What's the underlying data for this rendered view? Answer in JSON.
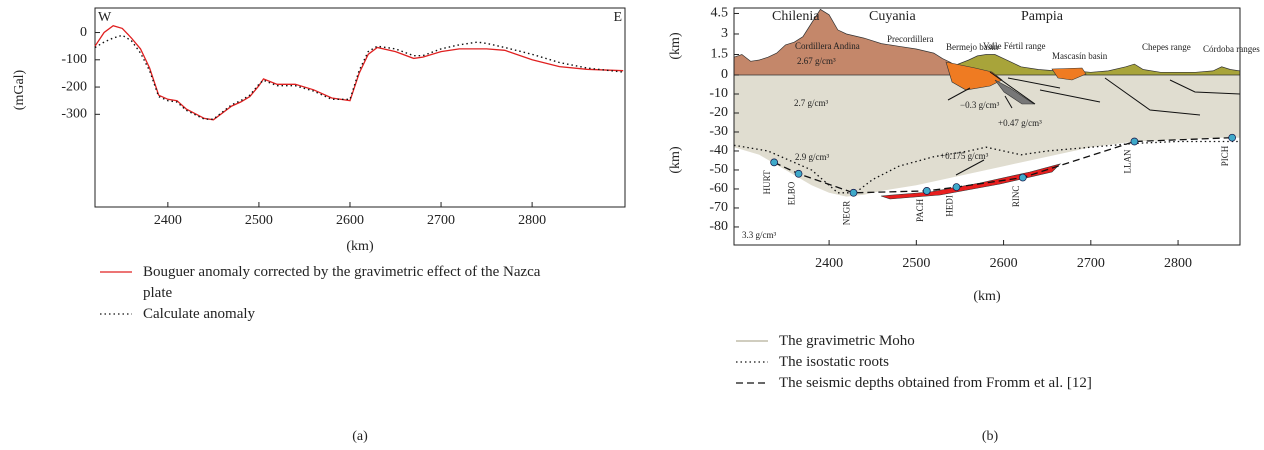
{
  "chart_data": [
    {
      "type": "line",
      "xlabel": "(km)",
      "ylabel": "(mGal)",
      "annotations": [
        "W",
        "E"
      ],
      "xlim": [
        2320,
        2902
      ],
      "xticks": [
        2400,
        2500,
        2600,
        2700,
        2800
      ],
      "ylim": [
        -640,
        90
      ],
      "yticks": [
        0,
        -100,
        -200,
        -300
      ],
      "x": [
        2320,
        2330,
        2340,
        2350,
        2360,
        2370,
        2380,
        2390,
        2400,
        2410,
        2420,
        2440,
        2450,
        2470,
        2480,
        2490,
        2500,
        2505,
        2520,
        2540,
        2560,
        2580,
        2600,
        2610,
        2620,
        2630,
        2650,
        2670,
        2680,
        2700,
        2720,
        2740,
        2750,
        2770,
        2800,
        2830,
        2860,
        2900
      ],
      "series": [
        {
          "name": "Bouguer anomaly corrected by the gravimetric effect of the Nazca plate",
          "color": "#e02020",
          "dash": "solid",
          "values": [
            -50,
            0,
            25,
            15,
            -20,
            -60,
            -130,
            -230,
            -245,
            -250,
            -280,
            -315,
            -320,
            -270,
            -255,
            -235,
            -195,
            -170,
            -190,
            -190,
            -210,
            -240,
            -250,
            -150,
            -80,
            -55,
            -70,
            -95,
            -90,
            -70,
            -60,
            -60,
            -60,
            -65,
            -100,
            -125,
            -135,
            -140
          ]
        },
        {
          "name": "Calculate anomaly",
          "color": "#111",
          "dash": "dotted",
          "values": [
            -55,
            -35,
            -20,
            -10,
            -30,
            -75,
            -140,
            -235,
            -250,
            -255,
            -285,
            -318,
            -318,
            -265,
            -250,
            -230,
            -190,
            -175,
            -195,
            -195,
            -215,
            -245,
            -245,
            -140,
            -70,
            -50,
            -60,
            -85,
            -85,
            -60,
            -45,
            -35,
            -40,
            -55,
            -80,
            -110,
            -130,
            -145
          ]
        }
      ]
    },
    {
      "type": "section",
      "xlabel": "(km)",
      "ylabel": "(km)",
      "y2label": "(km)",
      "xlim": [
        2291,
        2871
      ],
      "xticks": [
        2400,
        2500,
        2600,
        2700,
        2800
      ],
      "ylim": [
        -89.5,
        0
      ],
      "yticks": [
        -10,
        -20,
        -30,
        -40,
        -50,
        -60,
        -70,
        -80
      ],
      "y2lim": [
        0,
        4.9
      ],
      "y2ticks": [
        0,
        1.5,
        3,
        4.5
      ],
      "annotations": [
        "Chilenia",
        "Cuyania",
        "Pampia",
        "Cordillera Andina",
        "2.67 g/cm³",
        "Precordillera",
        "Bermejo basin",
        "Valle Fértil range",
        "Mascasín basin",
        "Chepes range",
        "Córdoba ranges",
        "2.7 g/cm³",
        "−0.3 g/cm³",
        "+0.47 g/cm³",
        "2.9 g/cm³",
        "+0.175 g/cm³",
        "3.3 g/cm³"
      ],
      "topography": [
        {
          "axis": "y2",
          "color": "#c4876a",
          "x": [
            2291,
            2300,
            2310,
            2320,
            2330,
            2340,
            2350,
            2360,
            2370,
            2380,
            2390,
            2400,
            2410,
            2420,
            2440,
            2460,
            2480,
            2500,
            2520,
            2530,
            2540,
            2545
          ],
          "values": [
            1.3,
            1.5,
            1.0,
            1.1,
            1.3,
            1.6,
            2.2,
            2.4,
            2.8,
            3.8,
            4.8,
            4.4,
            3.3,
            3.0,
            2.7,
            2.3,
            2.1,
            1.9,
            1.6,
            1.2,
            0.9,
            0
          ]
        },
        {
          "axis": "y2",
          "color": "#a8a43a",
          "x": [
            2540,
            2560,
            2570,
            2580,
            2590,
            2600,
            2620,
            2640,
            2660,
            2680,
            2700,
            2720,
            2740,
            2750,
            2760,
            2780,
            2800,
            2820,
            2840,
            2850,
            2860,
            2871
          ],
          "values": [
            0.6,
            1.1,
            1.4,
            1.5,
            1.5,
            1.2,
            0.6,
            0.4,
            0.3,
            0.3,
            0.2,
            0.3,
            0.6,
            0.8,
            0.4,
            0.2,
            0.2,
            0.2,
            0.3,
            0.6,
            0.4,
            0.3
          ]
        }
      ],
      "series": [
        {
          "name": "The gravimetric Moho",
          "color": "#e0ddd0",
          "dash": "fill",
          "x": [
            2291,
            2320,
            2350,
            2380,
            2400,
            2420,
            2440,
            2460,
            2500,
            2550,
            2600,
            2650,
            2700,
            2750,
            2800,
            2850,
            2871
          ],
          "values": [
            -38,
            -42,
            -50,
            -58,
            -62,
            -64,
            -63,
            -61,
            -58,
            -53,
            -48,
            -43,
            -38,
            -35,
            -34,
            -33,
            -33
          ]
        },
        {
          "name": "The isostatic roots",
          "color": "#111",
          "dash": "dotted",
          "x": [
            2291,
            2330,
            2380,
            2410,
            2430,
            2450,
            2480,
            2520,
            2560,
            2580,
            2600,
            2620,
            2650,
            2700,
            2750,
            2800,
            2871
          ],
          "values": [
            -37,
            -40,
            -50,
            -62,
            -62,
            -55,
            -48,
            -43,
            -40,
            -38,
            -40,
            -42,
            -40,
            -38,
            -36,
            -35,
            -35
          ]
        },
        {
          "name": "The seismic depths obtained from Fromm et al. [12]",
          "color": "#111",
          "dash": "dashed",
          "x": [
            2337,
            2365,
            2428,
            2512,
            2546,
            2622,
            2750,
            2862
          ],
          "values": [
            -46,
            -52,
            -62,
            -61,
            -59,
            -54,
            -35,
            -33
          ]
        }
      ],
      "stations": {
        "color": "#3fa9c9",
        "names": [
          "HURT",
          "ELBO",
          "NEGR",
          "PACH",
          "HEDI",
          "RINC",
          "LLAN",
          "PICH"
        ],
        "x": [
          2337,
          2365,
          2428,
          2512,
          2546,
          2622,
          2750,
          2862
        ],
        "values": [
          -46,
          -52,
          -62,
          -61,
          -59,
          -54,
          -35,
          -33
        ]
      }
    }
  ],
  "captions": [
    "(a)",
    "(b)"
  ]
}
